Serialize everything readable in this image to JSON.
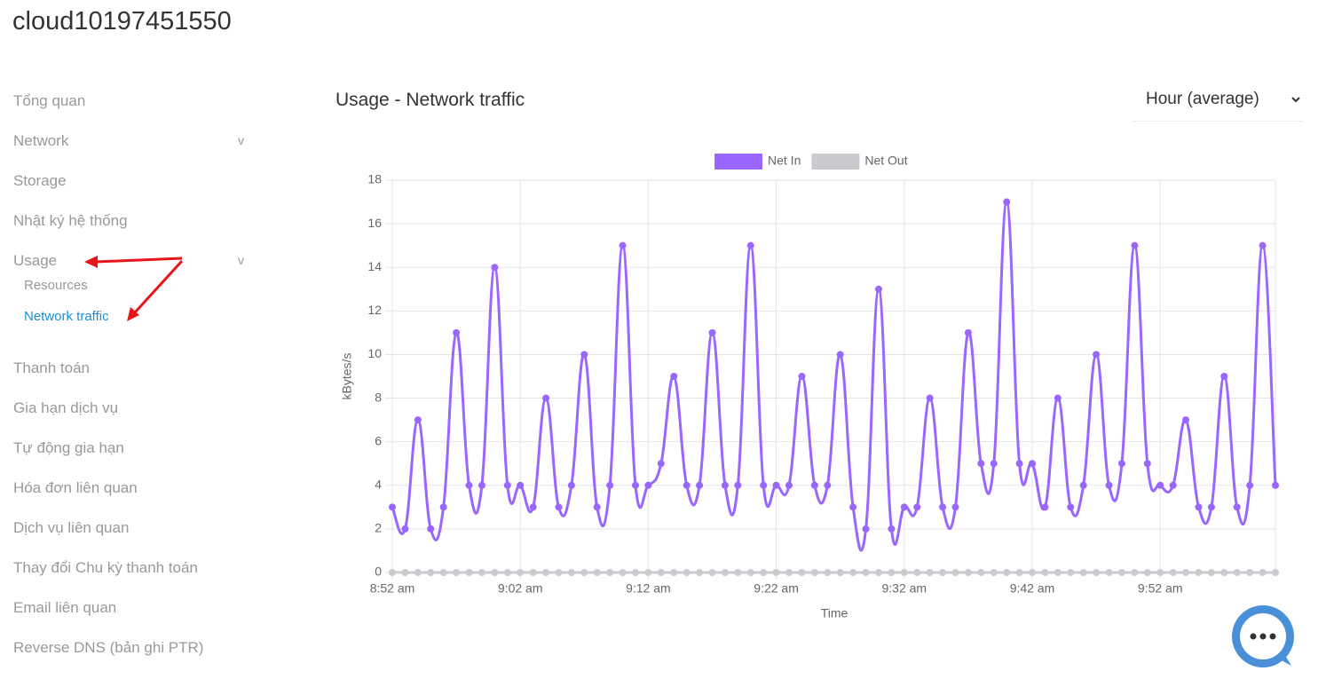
{
  "header": {
    "title": "cloud10197451550"
  },
  "sidebar": {
    "items": [
      {
        "label": "Tổng quan"
      },
      {
        "label": "Network",
        "toggle": "v"
      },
      {
        "label": "Storage"
      },
      {
        "label": "Nhật ký hệ thống"
      },
      {
        "label": "Usage",
        "toggle": "v",
        "children": [
          "Resources",
          "Network traffic"
        ]
      },
      {
        "label": "Thanh toán"
      },
      {
        "label": "Gia hạn dịch vụ"
      },
      {
        "label": "Tự động gia hạn"
      },
      {
        "label": "Hóa đơn liên quan"
      },
      {
        "label": "Dịch vụ liên quan"
      },
      {
        "label": "Thay đổi Chu kỳ thanh toán"
      },
      {
        "label": "Email liên quan"
      },
      {
        "label": "Reverse DNS (bản ghi PTR)"
      }
    ]
  },
  "section": {
    "title": "Usage - Network traffic",
    "select": "Hour (average)"
  },
  "chart_data": {
    "type": "line",
    "xlabel": "Time",
    "ylabel": "kBytes/s",
    "categories": [
      "8:52 am",
      null,
      null,
      null,
      null,
      null,
      null,
      null,
      null,
      null,
      "9:02 am",
      null,
      null,
      null,
      null,
      null,
      null,
      null,
      null,
      null,
      "9:12 am",
      null,
      null,
      null,
      null,
      null,
      null,
      null,
      null,
      null,
      "9:22 am",
      null,
      null,
      null,
      null,
      null,
      null,
      null,
      null,
      null,
      "9:32 am",
      null,
      null,
      null,
      null,
      null,
      null,
      null,
      null,
      null,
      "9:42 am",
      null,
      null,
      null,
      null,
      null,
      null,
      null,
      null,
      null,
      "9:52 am",
      null,
      null,
      null,
      null,
      null,
      null,
      null,
      null,
      null
    ],
    "series": [
      {
        "name": "Net In",
        "color": "#9966ff",
        "values": [
          3,
          2,
          7,
          2,
          3,
          11,
          4,
          4,
          14,
          4,
          4,
          3,
          8,
          3,
          4,
          10,
          3,
          4,
          15,
          4,
          4,
          5,
          9,
          4,
          4,
          11,
          4,
          4,
          15,
          4,
          4,
          4,
          9,
          4,
          4,
          10,
          3,
          2,
          13,
          2,
          3,
          3,
          8,
          3,
          3,
          11,
          5,
          5,
          17,
          5,
          5,
          3,
          8,
          3,
          4,
          10,
          4,
          5,
          15,
          5,
          4,
          4,
          7,
          3,
          3,
          9,
          3,
          4,
          15,
          4
        ]
      },
      {
        "name": "Net Out",
        "color": "#c9cbcf",
        "values": [
          0,
          0,
          0,
          0,
          0,
          0,
          0,
          0,
          0,
          0,
          0,
          0,
          0,
          0,
          0,
          0,
          0,
          0,
          0,
          0,
          0,
          0,
          0,
          0,
          0,
          0,
          0,
          0,
          0,
          0,
          0,
          0,
          0,
          0,
          0,
          0,
          0,
          0,
          0,
          0,
          0,
          0,
          0,
          0,
          0,
          0,
          0,
          0,
          0,
          0,
          0,
          0,
          0,
          0,
          0,
          0,
          0,
          0,
          0,
          0,
          0,
          0,
          0,
          0,
          0,
          0,
          0,
          0,
          0,
          0
        ]
      }
    ],
    "ylim": [
      0,
      18
    ],
    "yticks": [
      0,
      2,
      4,
      6,
      8,
      10,
      12,
      14,
      16,
      18
    ],
    "grid": true,
    "legend": "top"
  }
}
